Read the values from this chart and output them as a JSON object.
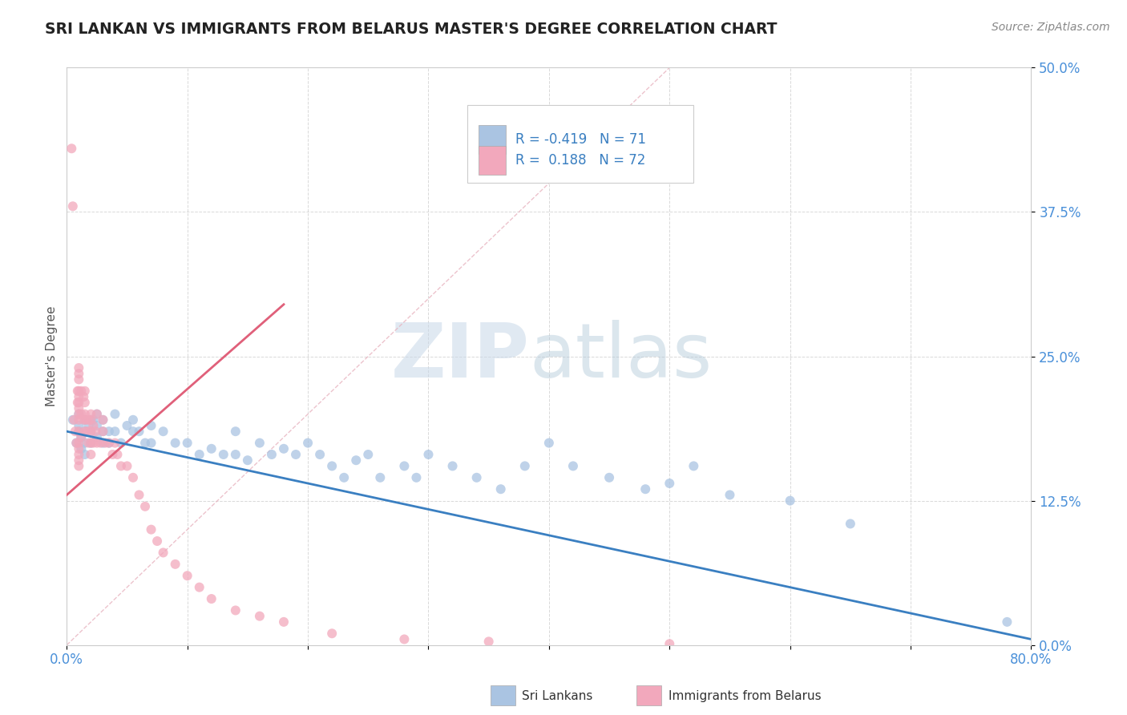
{
  "title": "SRI LANKAN VS IMMIGRANTS FROM BELARUS MASTER'S DEGREE CORRELATION CHART",
  "source": "Source: ZipAtlas.com",
  "ylabel": "Master's Degree",
  "xlim": [
    0.0,
    0.8
  ],
  "ylim": [
    0.0,
    0.5
  ],
  "xticks": [
    0.0,
    0.1,
    0.2,
    0.3,
    0.4,
    0.5,
    0.6,
    0.7,
    0.8
  ],
  "yticks": [
    0.0,
    0.125,
    0.25,
    0.375,
    0.5
  ],
  "ytick_labels": [
    "0.0%",
    "12.5%",
    "25.0%",
    "37.5%",
    "50.0%"
  ],
  "xtick_labels": [
    "0.0%",
    "",
    "",
    "",
    "",
    "",
    "",
    "",
    "80.0%"
  ],
  "blue_color": "#aac4e2",
  "pink_color": "#f2a8bc",
  "blue_line_color": "#3a7fc1",
  "pink_line_color": "#e0607a",
  "diag_color": "#e8b4c0",
  "R_blue": -0.419,
  "N_blue": 71,
  "R_pink": 0.188,
  "N_pink": 72,
  "legend_label_blue": "Sri Lankans",
  "legend_label_pink": "Immigrants from Belarus",
  "watermark_zip": "ZIP",
  "watermark_atlas": "atlas",
  "blue_points_x": [
    0.005,
    0.008,
    0.01,
    0.01,
    0.01,
    0.012,
    0.012,
    0.015,
    0.015,
    0.015,
    0.015,
    0.018,
    0.02,
    0.02,
    0.02,
    0.022,
    0.025,
    0.025,
    0.025,
    0.03,
    0.03,
    0.03,
    0.035,
    0.035,
    0.04,
    0.04,
    0.045,
    0.05,
    0.055,
    0.055,
    0.06,
    0.065,
    0.07,
    0.07,
    0.08,
    0.09,
    0.1,
    0.11,
    0.12,
    0.13,
    0.14,
    0.14,
    0.15,
    0.16,
    0.17,
    0.18,
    0.19,
    0.2,
    0.21,
    0.22,
    0.23,
    0.24,
    0.25,
    0.26,
    0.28,
    0.29,
    0.3,
    0.32,
    0.34,
    0.36,
    0.38,
    0.4,
    0.42,
    0.45,
    0.48,
    0.5,
    0.52,
    0.55,
    0.6,
    0.65,
    0.78
  ],
  "blue_points_y": [
    0.195,
    0.175,
    0.2,
    0.19,
    0.185,
    0.18,
    0.17,
    0.195,
    0.185,
    0.175,
    0.165,
    0.19,
    0.195,
    0.185,
    0.175,
    0.195,
    0.2,
    0.19,
    0.18,
    0.195,
    0.185,
    0.175,
    0.185,
    0.175,
    0.2,
    0.185,
    0.175,
    0.19,
    0.195,
    0.185,
    0.185,
    0.175,
    0.19,
    0.175,
    0.185,
    0.175,
    0.175,
    0.165,
    0.17,
    0.165,
    0.185,
    0.165,
    0.16,
    0.175,
    0.165,
    0.17,
    0.165,
    0.175,
    0.165,
    0.155,
    0.145,
    0.16,
    0.165,
    0.145,
    0.155,
    0.145,
    0.165,
    0.155,
    0.145,
    0.135,
    0.155,
    0.175,
    0.155,
    0.145,
    0.135,
    0.14,
    0.155,
    0.13,
    0.125,
    0.105,
    0.02
  ],
  "pink_points_x": [
    0.004,
    0.005,
    0.006,
    0.007,
    0.008,
    0.009,
    0.009,
    0.01,
    0.01,
    0.01,
    0.01,
    0.01,
    0.01,
    0.01,
    0.01,
    0.01,
    0.01,
    0.01,
    0.01,
    0.01,
    0.01,
    0.01,
    0.012,
    0.012,
    0.012,
    0.014,
    0.014,
    0.015,
    0.015,
    0.015,
    0.015,
    0.016,
    0.017,
    0.018,
    0.018,
    0.02,
    0.02,
    0.02,
    0.02,
    0.02,
    0.022,
    0.022,
    0.024,
    0.025,
    0.025,
    0.028,
    0.03,
    0.03,
    0.032,
    0.035,
    0.038,
    0.04,
    0.042,
    0.045,
    0.05,
    0.055,
    0.06,
    0.065,
    0.07,
    0.075,
    0.08,
    0.09,
    0.1,
    0.11,
    0.12,
    0.14,
    0.16,
    0.18,
    0.22,
    0.28,
    0.35,
    0.5
  ],
  "pink_points_y": [
    0.43,
    0.38,
    0.195,
    0.185,
    0.175,
    0.22,
    0.21,
    0.24,
    0.235,
    0.23,
    0.22,
    0.215,
    0.21,
    0.205,
    0.2,
    0.195,
    0.185,
    0.175,
    0.17,
    0.165,
    0.16,
    0.155,
    0.22,
    0.2,
    0.18,
    0.215,
    0.195,
    0.22,
    0.21,
    0.2,
    0.185,
    0.195,
    0.185,
    0.195,
    0.175,
    0.2,
    0.195,
    0.185,
    0.175,
    0.165,
    0.19,
    0.175,
    0.185,
    0.2,
    0.175,
    0.175,
    0.195,
    0.185,
    0.175,
    0.175,
    0.165,
    0.175,
    0.165,
    0.155,
    0.155,
    0.145,
    0.13,
    0.12,
    0.1,
    0.09,
    0.08,
    0.07,
    0.06,
    0.05,
    0.04,
    0.03,
    0.025,
    0.02,
    0.01,
    0.005,
    0.003,
    0.001
  ],
  "pink_line_x_start": 0.0,
  "pink_line_x_end": 0.18,
  "pink_line_y_start": 0.13,
  "pink_line_y_end": 0.295,
  "blue_line_x_start": 0.0,
  "blue_line_x_end": 0.8,
  "blue_line_y_start": 0.185,
  "blue_line_y_end": 0.005,
  "diag_line_x_start": 0.0,
  "diag_line_x_end": 0.5,
  "diag_line_y_start": 0.0,
  "diag_line_y_end": 0.5
}
